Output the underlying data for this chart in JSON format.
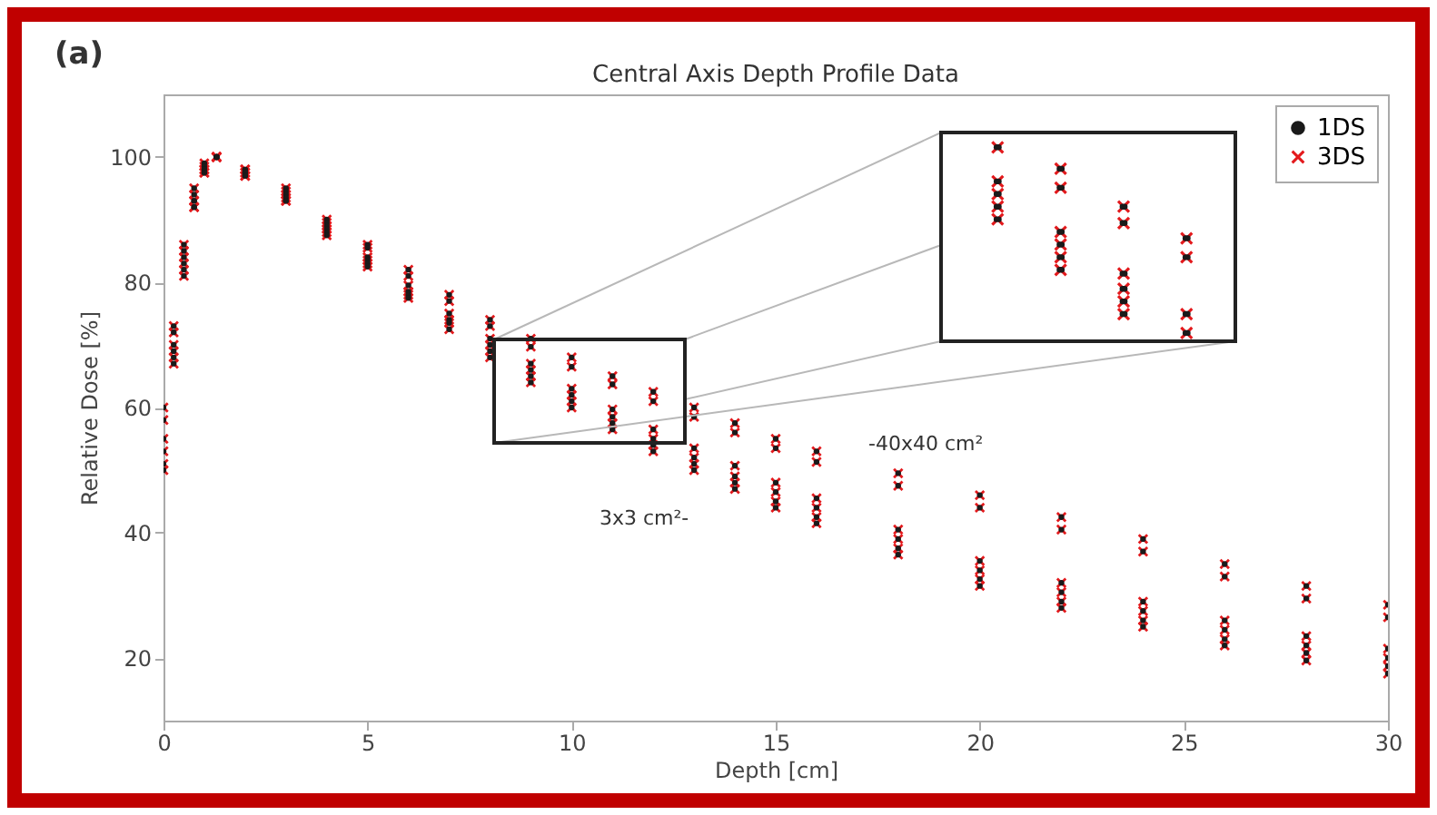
{
  "chart_data": {
    "type": "scatter",
    "title": "Central Axis Depth Profile Data",
    "xlabel": "Depth [cm]",
    "ylabel": "Relative Dose [%]",
    "annotations": [
      "(a)",
      "3x3 cm²-",
      "-40x40 cm²"
    ],
    "xlim": [
      0,
      30
    ],
    "ylim": [
      10,
      110
    ],
    "xticks": [
      0,
      5,
      10,
      15,
      20,
      25,
      30
    ],
    "yticks": [
      20,
      40,
      60,
      80,
      100
    ],
    "legend": "top right",
    "series": [
      {
        "name": "1DS",
        "color": "#1a1a1a",
        "marker": "circle",
        "x": [
          0,
          0.25,
          0.5,
          0.75,
          1,
          1.3,
          2,
          3,
          4,
          5,
          6,
          7,
          8,
          9,
          10,
          11,
          12,
          13,
          14,
          15,
          16,
          18,
          20,
          22,
          24,
          26,
          28,
          30,
          0,
          0.25,
          0.5,
          0.75,
          1,
          1.3,
          2,
          3,
          4,
          5,
          6,
          7,
          8,
          9,
          10,
          11,
          12,
          13,
          14,
          15,
          16,
          18,
          20,
          22,
          24,
          26,
          28,
          30,
          0,
          0.25,
          0.5,
          0.75,
          1,
          1.3,
          2,
          3,
          4,
          5,
          6,
          7,
          8,
          9,
          10,
          11,
          12,
          13,
          14,
          15,
          16,
          18,
          20,
          22,
          24,
          26,
          28,
          30,
          0,
          0.25,
          0.5,
          0.75,
          1,
          1.3,
          2,
          3,
          4,
          5,
          6,
          7,
          8,
          9,
          10,
          11,
          12,
          13,
          14,
          15,
          16,
          18,
          20,
          22,
          24,
          26,
          28,
          30,
          0,
          0.25,
          0.5,
          0.75,
          1,
          1.3,
          2,
          3,
          4,
          5,
          6,
          7,
          8,
          9,
          10,
          11,
          12,
          13,
          14,
          15,
          16,
          18,
          20,
          22,
          24,
          26,
          28,
          30,
          0,
          0.25,
          0.5,
          0.75,
          1,
          1.3,
          2,
          3,
          4,
          5,
          6,
          7,
          8,
          9,
          10,
          11,
          12,
          13,
          14,
          15,
          16,
          18,
          20,
          22,
          24,
          26,
          28,
          30
        ],
        "values": [
          60,
          73,
          86,
          95,
          99,
          100,
          98,
          95,
          90,
          86,
          82,
          78,
          74,
          71,
          68,
          65,
          62.5,
          60,
          57.5,
          55,
          53,
          49.5,
          46,
          42.5,
          39,
          35,
          31.5,
          28.5,
          58,
          72,
          85,
          94,
          98.5,
          100,
          98,
          94.5,
          89.5,
          85.5,
          81,
          77,
          73,
          69.7,
          66.5,
          63.7,
          61,
          58.5,
          56,
          53.5,
          51.3,
          47.5,
          44,
          40.5,
          37,
          33,
          29.5,
          26.5,
          55,
          70,
          84,
          93,
          98,
          100,
          97.5,
          94,
          89,
          84,
          79.5,
          75,
          71,
          67,
          63,
          59.7,
          56.5,
          53.5,
          50.7,
          48,
          45.5,
          40.5,
          35.5,
          32,
          29,
          26,
          23.5,
          21.5,
          53,
          69,
          83,
          93,
          98,
          100,
          97.5,
          93.5,
          88.5,
          83.5,
          78.5,
          74,
          70,
          66,
          62,
          58.5,
          55,
          52,
          49,
          46.5,
          44,
          39,
          34,
          30.5,
          27.5,
          24.5,
          22,
          20,
          51,
          68,
          82,
          92,
          97.5,
          100,
          97,
          93,
          88,
          83,
          78,
          73.5,
          69,
          65,
          61,
          57.5,
          54,
          51,
          48,
          45,
          42.5,
          37.5,
          32.6,
          29,
          26,
          23,
          20.8,
          18.7,
          50,
          67,
          81,
          92,
          97.5,
          100,
          97,
          93,
          87.5,
          82.5,
          77.5,
          72.5,
          68,
          64,
          60,
          56.5,
          53,
          50,
          47,
          44,
          41.5,
          36.5,
          31.5,
          28,
          25,
          22,
          19.6,
          17.5
        ]
      },
      {
        "name": "3DS",
        "color": "#e3191c",
        "marker": "cross",
        "x": [
          0,
          0.25,
          0.5,
          0.75,
          1,
          1.3,
          2,
          3,
          4,
          5,
          6,
          7,
          8,
          9,
          10,
          11,
          12,
          13,
          14,
          15,
          16,
          18,
          20,
          22,
          24,
          26,
          28,
          30,
          0,
          0.25,
          0.5,
          0.75,
          1,
          1.3,
          2,
          3,
          4,
          5,
          6,
          7,
          8,
          9,
          10,
          11,
          12,
          13,
          14,
          15,
          16,
          18,
          20,
          22,
          24,
          26,
          28,
          30,
          0,
          0.25,
          0.5,
          0.75,
          1,
          1.3,
          2,
          3,
          4,
          5,
          6,
          7,
          8,
          9,
          10,
          11,
          12,
          13,
          14,
          15,
          16,
          18,
          20,
          22,
          24,
          26,
          28,
          30,
          0,
          0.25,
          0.5,
          0.75,
          1,
          1.3,
          2,
          3,
          4,
          5,
          6,
          7,
          8,
          9,
          10,
          11,
          12,
          13,
          14,
          15,
          16,
          18,
          20,
          22,
          24,
          26,
          28,
          30,
          0,
          0.25,
          0.5,
          0.75,
          1,
          1.3,
          2,
          3,
          4,
          5,
          6,
          7,
          8,
          9,
          10,
          11,
          12,
          13,
          14,
          15,
          16,
          18,
          20,
          22,
          24,
          26,
          28,
          30,
          0,
          0.25,
          0.5,
          0.75,
          1,
          1.3,
          2,
          3,
          4,
          5,
          6,
          7,
          8,
          9,
          10,
          11,
          12,
          13,
          14,
          15,
          16,
          18,
          20,
          22,
          24,
          26,
          28,
          30
        ],
        "values": [
          60,
          73,
          86,
          95,
          99,
          100,
          98,
          95,
          90,
          86,
          82,
          78,
          74,
          71,
          68,
          65,
          62.5,
          60,
          57.5,
          55,
          53,
          49.5,
          46,
          42.5,
          39,
          35,
          31.5,
          28.5,
          58,
          72,
          85,
          94,
          98.5,
          100,
          98,
          94.5,
          89.5,
          85.5,
          81,
          77,
          73,
          69.7,
          66.5,
          63.7,
          61,
          58.5,
          56,
          53.5,
          51.3,
          47.5,
          44,
          40.5,
          37,
          33,
          29.5,
          26.5,
          55,
          70,
          84,
          93,
          98,
          100,
          97.5,
          94,
          89,
          84,
          79.5,
          75,
          71,
          67,
          63,
          59.7,
          56.5,
          53.5,
          50.7,
          48,
          45.5,
          40.5,
          35.5,
          32,
          29,
          26,
          23.5,
          21.5,
          53,
          69,
          83,
          93,
          98,
          100,
          97.5,
          93.5,
          88.5,
          83.5,
          78.5,
          74,
          70,
          66,
          62,
          58.5,
          55,
          52,
          49,
          46.5,
          44,
          39,
          34,
          30.5,
          27.5,
          24.5,
          22,
          20,
          51,
          68,
          82,
          92,
          97.5,
          100,
          97,
          93,
          88,
          83,
          78,
          73.5,
          69,
          65,
          61,
          57.5,
          54,
          51,
          48,
          45,
          42.5,
          37.5,
          32.6,
          29,
          26,
          23,
          20.8,
          18.7,
          50,
          67,
          81,
          92,
          97.5,
          100,
          97,
          93,
          87.5,
          82.5,
          77.5,
          72.5,
          68,
          64,
          60,
          56.5,
          53,
          50,
          47,
          44,
          41.5,
          36.5,
          31.5,
          28,
          25,
          22,
          19.6,
          17.5
        ]
      }
    ]
  }
}
